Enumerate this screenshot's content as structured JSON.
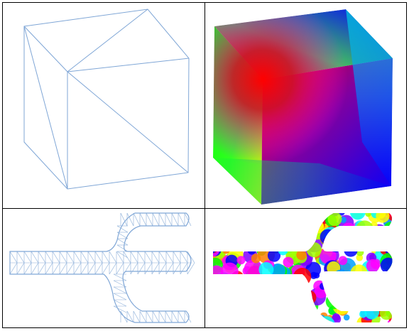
{
  "figure": {
    "panels": [
      {
        "id": "wireframe-cube",
        "kind": "wireframe",
        "shape": "cube"
      },
      {
        "id": "shaded-cube",
        "kind": "color-gradient",
        "shape": "cube"
      },
      {
        "id": "wireframe-trident",
        "kind": "wireframe",
        "shape": "trident"
      },
      {
        "id": "shaded-trident",
        "kind": "color-noise",
        "shape": "trident"
      }
    ],
    "colors": {
      "wire": "#7fa6d6",
      "wire_dark": "#3c5f8f",
      "border": "#000000",
      "gradient_red": "#ff0000",
      "gradient_green": "#00ff00",
      "gradient_blue": "#0000ff",
      "gradient_yellow": "#ffff00",
      "gradient_cyan": "#00ffff",
      "gradient_magenta": "#ff00ff"
    }
  }
}
